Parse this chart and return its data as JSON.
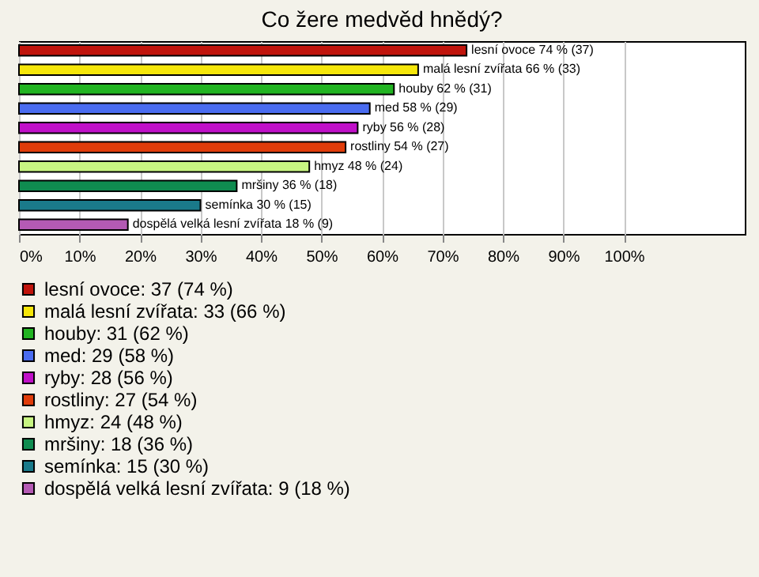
{
  "chart_data": {
    "type": "bar",
    "orientation": "horizontal",
    "title": "Co žere medvěd hnědý?",
    "categories": [
      null,
      null,
      null,
      null,
      null,
      null,
      null,
      null,
      null,
      null
    ],
    "series": [
      {
        "name": "lesní ovoce: 37 (74 %)",
        "color": "#c0140c",
        "values": [
          74,
          null,
          null,
          null,
          null,
          null,
          null,
          null,
          null,
          null
        ],
        "value_labels": [
          "lesní ovoce 74 % (37)",
          null,
          null,
          null,
          null,
          null,
          null,
          null,
          null,
          null
        ]
      },
      {
        "name": "malá lesní zvířata: 33 (66 %)",
        "color": "#f5e60a",
        "values": [
          null,
          66,
          null,
          null,
          null,
          null,
          null,
          null,
          null,
          null
        ],
        "value_labels": [
          null,
          "malá lesní zvířata 66 % (33)",
          null,
          null,
          null,
          null,
          null,
          null,
          null,
          null
        ]
      },
      {
        "name": "houby: 31 (62 %)",
        "color": "#22b422",
        "values": [
          null,
          null,
          62,
          null,
          null,
          null,
          null,
          null,
          null,
          null
        ],
        "value_labels": [
          null,
          null,
          "houby 62 % (31)",
          null,
          null,
          null,
          null,
          null,
          null,
          null
        ]
      },
      {
        "name": "med: 29 (58 %)",
        "color": "#4a6cf0",
        "values": [
          null,
          null,
          null,
          58,
          null,
          null,
          null,
          null,
          null,
          null
        ],
        "value_labels": [
          null,
          null,
          null,
          "med 58 % (29)",
          null,
          null,
          null,
          null,
          null,
          null
        ]
      },
      {
        "name": "ryby: 28 (56 %)",
        "color": "#c010c8",
        "values": [
          null,
          null,
          null,
          null,
          56,
          null,
          null,
          null,
          null,
          null
        ],
        "value_labels": [
          null,
          null,
          null,
          null,
          "ryby 56 % (28)",
          null,
          null,
          null,
          null,
          null
        ]
      },
      {
        "name": "rostliny: 27 (54 %)",
        "color": "#e03c0a",
        "values": [
          null,
          null,
          null,
          null,
          null,
          54,
          null,
          null,
          null,
          null
        ],
        "value_labels": [
          null,
          null,
          null,
          null,
          null,
          "rostliny 54 % (27)",
          null,
          null,
          null,
          null
        ]
      },
      {
        "name": "hmyz: 24 (48 %)",
        "color": "#c8f582",
        "values": [
          null,
          null,
          null,
          null,
          null,
          null,
          48,
          null,
          null,
          null
        ],
        "value_labels": [
          null,
          null,
          null,
          null,
          null,
          null,
          "hmyz 48 % (24)",
          null,
          null,
          null
        ]
      },
      {
        "name": "mršiny: 18 (36 %)",
        "color": "#0f8c50",
        "values": [
          null,
          null,
          null,
          null,
          null,
          null,
          null,
          36,
          null,
          null
        ],
        "value_labels": [
          null,
          null,
          null,
          null,
          null,
          null,
          null,
          "mršiny 36 % (18)",
          null,
          null
        ]
      },
      {
        "name": "semínka: 15 (30 %)",
        "color": "#1a7a8a",
        "values": [
          null,
          null,
          null,
          null,
          null,
          null,
          null,
          null,
          30,
          null
        ],
        "value_labels": [
          null,
          null,
          null,
          null,
          null,
          null,
          null,
          null,
          "semínka 30 % (15)",
          null
        ]
      },
      {
        "name": "dospělá velká lesní zvířata: 9 (18 %)",
        "color": "#b45ab4",
        "values": [
          null,
          null,
          null,
          null,
          null,
          null,
          null,
          null,
          null,
          18
        ],
        "value_labels": [
          null,
          null,
          null,
          null,
          null,
          null,
          null,
          null,
          null,
          "dospělá velká lesní zvířata 18 % (9)"
        ]
      }
    ],
    "xlim": [
      0,
      120
    ],
    "xticks": [
      {
        "value": 0,
        "label": "0%"
      },
      {
        "value": 10,
        "label": "10%"
      },
      {
        "value": 20,
        "label": "20%"
      },
      {
        "value": 30,
        "label": "30%"
      },
      {
        "value": 40,
        "label": "40%"
      },
      {
        "value": 50,
        "label": "50%"
      },
      {
        "value": 60,
        "label": "60%"
      },
      {
        "value": 70,
        "label": "70%"
      },
      {
        "value": 80,
        "label": "80%"
      },
      {
        "value": 90,
        "label": "90%"
      },
      {
        "value": 100,
        "label": "100%"
      }
    ],
    "grid": "x",
    "legend": "bottom",
    "tick_labels": "x"
  }
}
